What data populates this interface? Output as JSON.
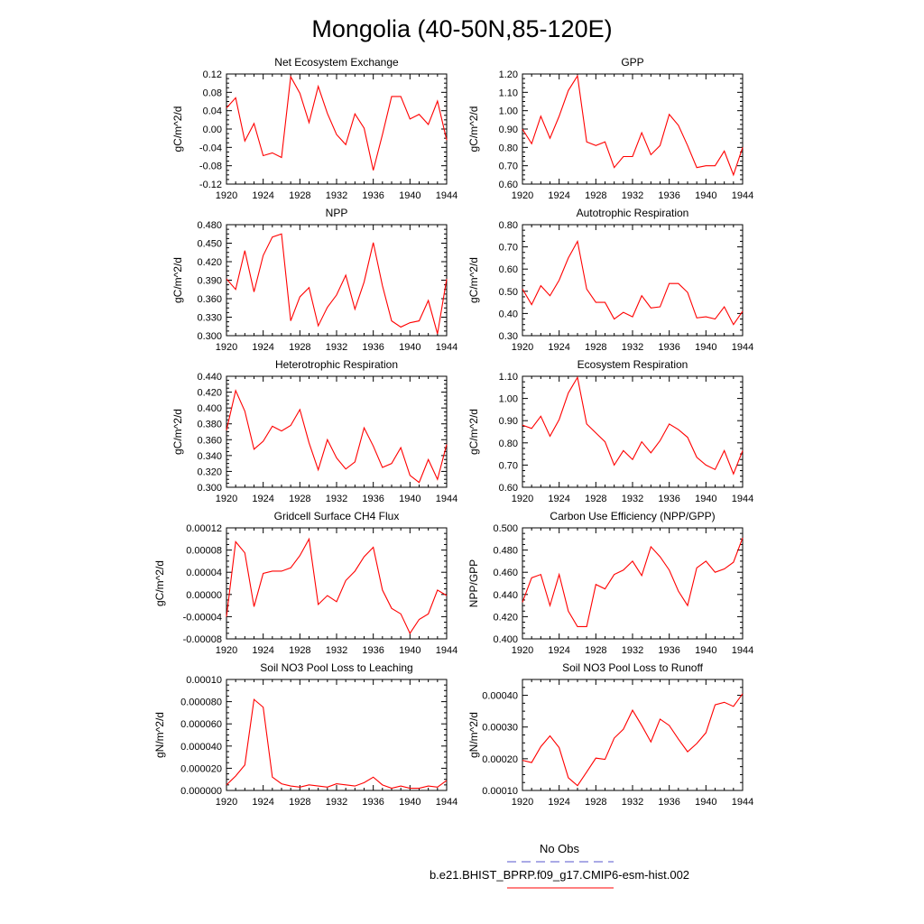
{
  "title": "Mongolia (40-50N,85-120E)",
  "legend": {
    "entries": [
      {
        "label": "No Obs",
        "color": "#5555cc",
        "style": "dashed"
      },
      {
        "label": "b.e21.BHIST_BPRP.f09_g17.CMIP6-esm-hist.002",
        "color": "#ff0000",
        "style": "solid"
      }
    ]
  },
  "x_years": [
    1920,
    1921,
    1922,
    1923,
    1924,
    1925,
    1926,
    1927,
    1928,
    1929,
    1930,
    1931,
    1932,
    1933,
    1934,
    1935,
    1936,
    1937,
    1938,
    1939,
    1940,
    1941,
    1942,
    1943,
    1944
  ],
  "chart_data": [
    {
      "type": "line",
      "title": "Net Ecosystem Exchange",
      "ylabel": "gC/m^2/d",
      "xlim": [
        1920,
        1944
      ],
      "ylim": [
        -0.12,
        0.12
      ],
      "xticks": [
        "1920",
        "1924",
        "1928",
        "1932",
        "1936",
        "1940",
        "1944"
      ],
      "yticks": [
        "-0.12",
        "-0.08",
        "-0.04",
        "0.00",
        "0.04",
        "0.08",
        "0.12"
      ],
      "ytick_values": [
        -0.12,
        -0.08,
        -0.04,
        0,
        0.04,
        0.08,
        0.12
      ],
      "series": [
        {
          "color": "#ff0000",
          "values": [
            0.046,
            0.068,
            -0.026,
            0.012,
            -0.058,
            -0.052,
            -0.062,
            0.114,
            0.078,
            0.014,
            0.093,
            0.034,
            -0.012,
            -0.034,
            0.033,
            0.002,
            -0.09,
            -0.012,
            0.071,
            0.071,
            0.022,
            0.032,
            0.01,
            0.061,
            -0.024
          ]
        }
      ]
    },
    {
      "type": "line",
      "title": "GPP",
      "ylabel": "gC/m^2/d",
      "xlim": [
        1920,
        1944
      ],
      "ylim": [
        0.6,
        1.2
      ],
      "xticks": [
        "1920",
        "1924",
        "1928",
        "1932",
        "1936",
        "1940",
        "1944"
      ],
      "yticks": [
        "0.60",
        "0.70",
        "0.80",
        "0.90",
        "1.00",
        "1.10",
        "1.20"
      ],
      "ytick_values": [
        0.6,
        0.7,
        0.8,
        0.9,
        1.0,
        1.1,
        1.2
      ],
      "series": [
        {
          "color": "#ff0000",
          "values": [
            0.9,
            0.82,
            0.97,
            0.85,
            0.97,
            1.11,
            1.19,
            0.83,
            0.81,
            0.83,
            0.69,
            0.75,
            0.75,
            0.88,
            0.76,
            0.81,
            0.98,
            0.92,
            0.81,
            0.69,
            0.7,
            0.7,
            0.78,
            0.65,
            0.8
          ]
        }
      ]
    },
    {
      "type": "line",
      "title": "NPP",
      "ylabel": "gC/m^2/d",
      "xlim": [
        1920,
        1944
      ],
      "ylim": [
        0.3,
        0.48
      ],
      "xticks": [
        "1920",
        "1924",
        "1928",
        "1932",
        "1936",
        "1940",
        "1944"
      ],
      "yticks": [
        "0.300",
        "0.330",
        "0.360",
        "0.390",
        "0.420",
        "0.450",
        "0.480"
      ],
      "ytick_values": [
        0.3,
        0.33,
        0.36,
        0.39,
        0.42,
        0.45,
        0.48
      ],
      "series": [
        {
          "color": "#ff0000",
          "values": [
            0.392,
            0.375,
            0.438,
            0.371,
            0.43,
            0.46,
            0.465,
            0.324,
            0.363,
            0.378,
            0.316,
            0.346,
            0.366,
            0.398,
            0.343,
            0.387,
            0.451,
            0.381,
            0.324,
            0.314,
            0.321,
            0.324,
            0.357,
            0.303,
            0.392
          ]
        }
      ]
    },
    {
      "type": "line",
      "title": "Autotrophic Respiration",
      "ylabel": "gC/m^2/d",
      "xlim": [
        1920,
        1944
      ],
      "ylim": [
        0.3,
        0.8
      ],
      "xticks": [
        "1920",
        "1924",
        "1928",
        "1932",
        "1936",
        "1940",
        "1944"
      ],
      "yticks": [
        "0.30",
        "0.40",
        "0.50",
        "0.60",
        "0.70",
        "0.80"
      ],
      "ytick_values": [
        0.3,
        0.4,
        0.5,
        0.6,
        0.7,
        0.8
      ],
      "series": [
        {
          "color": "#ff0000",
          "values": [
            0.51,
            0.44,
            0.525,
            0.48,
            0.55,
            0.65,
            0.725,
            0.51,
            0.45,
            0.45,
            0.375,
            0.405,
            0.385,
            0.48,
            0.425,
            0.43,
            0.535,
            0.535,
            0.495,
            0.38,
            0.385,
            0.375,
            0.43,
            0.35,
            0.41
          ]
        }
      ]
    },
    {
      "type": "line",
      "title": "Heterotrophic Respiration",
      "ylabel": "gC/m^2/d",
      "xlim": [
        1920,
        1944
      ],
      "ylim": [
        0.3,
        0.44
      ],
      "xticks": [
        "1920",
        "1924",
        "1928",
        "1932",
        "1936",
        "1940",
        "1944"
      ],
      "yticks": [
        "0.300",
        "0.320",
        "0.340",
        "0.360",
        "0.380",
        "0.400",
        "0.420",
        "0.440"
      ],
      "ytick_values": [
        0.3,
        0.32,
        0.34,
        0.36,
        0.38,
        0.4,
        0.42,
        0.44
      ],
      "series": [
        {
          "color": "#ff0000",
          "values": [
            0.372,
            0.422,
            0.396,
            0.348,
            0.358,
            0.377,
            0.371,
            0.378,
            0.398,
            0.356,
            0.322,
            0.36,
            0.337,
            0.323,
            0.332,
            0.375,
            0.352,
            0.325,
            0.33,
            0.35,
            0.315,
            0.306,
            0.335,
            0.31,
            0.354
          ]
        }
      ]
    },
    {
      "type": "line",
      "title": "Ecosystem Respiration",
      "ylabel": "gC/m^2/d",
      "xlim": [
        1920,
        1944
      ],
      "ylim": [
        0.6,
        1.1
      ],
      "xticks": [
        "1920",
        "1924",
        "1928",
        "1932",
        "1936",
        "1940",
        "1944"
      ],
      "yticks": [
        "0.60",
        "0.70",
        "0.80",
        "0.90",
        "1.00",
        "1.10"
      ],
      "ytick_values": [
        0.6,
        0.7,
        0.8,
        0.9,
        1.0,
        1.1
      ],
      "series": [
        {
          "color": "#ff0000",
          "values": [
            0.88,
            0.865,
            0.92,
            0.83,
            0.905,
            1.025,
            1.095,
            0.885,
            0.845,
            0.805,
            0.7,
            0.765,
            0.725,
            0.805,
            0.755,
            0.81,
            0.885,
            0.86,
            0.825,
            0.735,
            0.7,
            0.68,
            0.765,
            0.66,
            0.765
          ]
        }
      ]
    },
    {
      "type": "line",
      "title": "Gridcell Surface CH4 Flux",
      "ylabel": "gC/m^2/d",
      "xlim": [
        1920,
        1944
      ],
      "ylim": [
        -8e-05,
        0.00012
      ],
      "xticks": [
        "1920",
        "1924",
        "1928",
        "1932",
        "1936",
        "1940",
        "1944"
      ],
      "yticks": [
        "-0.00008",
        "-0.00004",
        "0.00000",
        "0.00004",
        "0.00008",
        "0.00012"
      ],
      "ytick_values": [
        -8e-05,
        -4e-05,
        0,
        4e-05,
        8e-05,
        0.00012
      ],
      "series": [
        {
          "color": "#ff0000",
          "values": [
            -4e-05,
            9.5e-05,
            7.5e-05,
            -2.2e-05,
            3.8e-05,
            4.2e-05,
            4.2e-05,
            4.8e-05,
            7e-05,
            0.0001,
            -1.8e-05,
            -2e-06,
            -1.3e-05,
            2.5e-05,
            4.2e-05,
            6.8e-05,
            8.5e-05,
            8e-06,
            -2.5e-05,
            -3.5e-05,
            -7e-05,
            -4.5e-05,
            -3.5e-05,
            8e-06,
            -2e-06
          ]
        }
      ]
    },
    {
      "type": "line",
      "title": "Carbon Use Efficiency (NPP/GPP)",
      "ylabel": "NPP/GPP",
      "xlim": [
        1920,
        1944
      ],
      "ylim": [
        0.4,
        0.5
      ],
      "xticks": [
        "1920",
        "1924",
        "1928",
        "1932",
        "1936",
        "1940",
        "1944"
      ],
      "yticks": [
        "0.400",
        "0.420",
        "0.440",
        "0.460",
        "0.480",
        "0.500"
      ],
      "ytick_values": [
        0.4,
        0.42,
        0.44,
        0.46,
        0.48,
        0.5
      ],
      "series": [
        {
          "color": "#ff0000",
          "values": [
            0.433,
            0.455,
            0.458,
            0.43,
            0.458,
            0.425,
            0.411,
            0.411,
            0.449,
            0.445,
            0.458,
            0.462,
            0.47,
            0.457,
            0.483,
            0.474,
            0.462,
            0.443,
            0.43,
            0.464,
            0.47,
            0.46,
            0.463,
            0.469,
            0.491
          ]
        }
      ]
    },
    {
      "type": "line",
      "title": "Soil NO3 Pool Loss to Leaching",
      "ylabel": "gN/m^2/d",
      "xlim": [
        1920,
        1944
      ],
      "ylim": [
        0,
        0.0001
      ],
      "xticks": [
        "1920",
        "1924",
        "1928",
        "1932",
        "1936",
        "1940",
        "1944"
      ],
      "yticks": [
        "0.000000",
        "0.000020",
        "0.000040",
        "0.000060",
        "0.000080",
        "0.00010"
      ],
      "ytick_values": [
        0,
        2e-05,
        4e-05,
        6e-05,
        8e-05,
        0.0001
      ],
      "series": [
        {
          "color": "#ff0000",
          "values": [
            5e-06,
            1.3e-05,
            2.3e-05,
            8.2e-05,
            7.5e-05,
            1.2e-05,
            6e-06,
            4e-06,
            3e-06,
            5e-06,
            4e-06,
            3e-06,
            6e-06,
            5e-06,
            4e-06,
            7e-06,
            1.2e-05,
            5e-06,
            2e-06,
            4e-06,
            2e-06,
            2e-06,
            4e-06,
            3e-06,
            9e-06
          ]
        }
      ]
    },
    {
      "type": "line",
      "title": "Soil NO3 Pool Loss to Runoff",
      "ylabel": "gN/m^2/d",
      "xlim": [
        1920,
        1944
      ],
      "ylim": [
        0.0001,
        0.00045
      ],
      "xticks": [
        "1920",
        "1924",
        "1928",
        "1932",
        "1936",
        "1940",
        "1944"
      ],
      "yticks": [
        "0.00010",
        "0.00020",
        "0.00030",
        "0.00040"
      ],
      "ytick_values": [
        0.0001,
        0.0002,
        0.0003,
        0.0004
      ],
      "series": [
        {
          "color": "#ff0000",
          "values": [
            0.000195,
            0.000188,
            0.000238,
            0.000272,
            0.000235,
            0.00014,
            0.000115,
            0.000158,
            0.000202,
            0.000198,
            0.000265,
            0.000293,
            0.000353,
            0.000305,
            0.000253,
            0.000325,
            0.000305,
            0.000262,
            0.000222,
            0.000248,
            0.000282,
            0.00037,
            0.000378,
            0.000365,
            0.000405
          ]
        }
      ]
    }
  ]
}
